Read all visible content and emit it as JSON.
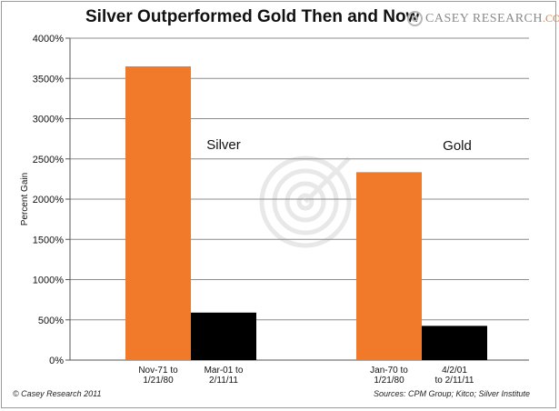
{
  "title": "Silver Outperformed Gold Then and Now",
  "logo": {
    "brand": "CASEY RESEARCH",
    "domain_suffix": ".COM",
    "icon": "target-swirl-icon"
  },
  "footer": {
    "copyright": "© Casey Research 2011",
    "sources": "Sources: CPM Group; Kitco; Silver Institute"
  },
  "colors": {
    "orange": "#f07a2a",
    "black": "#000000",
    "grid": "#8c8c8c"
  },
  "chart_data": {
    "type": "bar",
    "title": "Silver Outperformed Gold Then and Now",
    "ylabel": "Percent Gain",
    "ylim": [
      0,
      4000
    ],
    "yticks": [
      "0%",
      "500%",
      "1000%",
      "1500%",
      "2000%",
      "2500%",
      "3000%",
      "3500%",
      "4000%"
    ],
    "grid": true,
    "groups": [
      {
        "name": "Silver",
        "bars": [
          {
            "label_lines": [
              "Nov-71 to",
              "1/21/80"
            ],
            "value": 3650,
            "color": "#f07a2a"
          },
          {
            "label_lines": [
              "Mar-01 to",
              "2/11/11"
            ],
            "value": 590,
            "color": "#000000"
          }
        ]
      },
      {
        "name": "Gold",
        "bars": [
          {
            "label_lines": [
              "Jan-70 to",
              "1/21/80"
            ],
            "value": 2335,
            "color": "#f07a2a"
          },
          {
            "label_lines": [
              "4/2/01",
              "to 2/11/11"
            ],
            "value": 425,
            "color": "#000000"
          }
        ]
      }
    ]
  }
}
